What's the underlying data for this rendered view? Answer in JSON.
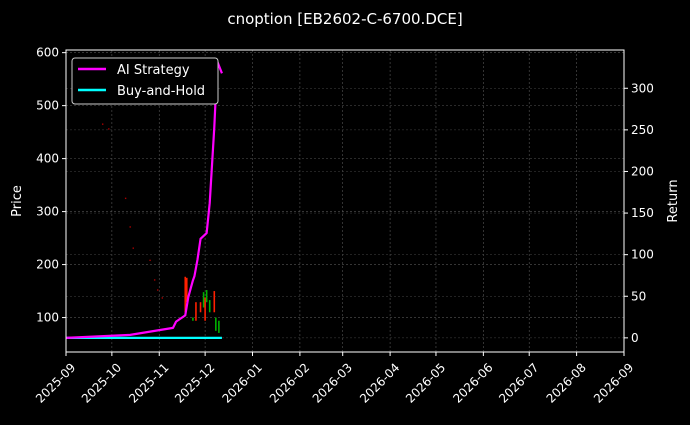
{
  "chart_data": {
    "type": "line",
    "title": "cnoption [EB2602-C-6700.DCE]",
    "ylabel": "Price",
    "y2label": "Return",
    "xlim": [
      "2025-09-01",
      "2026-09-01"
    ],
    "ylim": [
      35,
      605
    ],
    "y2lim": [
      -17,
      346
    ],
    "grid": true,
    "legend_placement": "top-left",
    "x_ticks": [
      "2025-09",
      "2025-10",
      "2025-11",
      "2025-12",
      "2026-01",
      "2026-02",
      "2026-03",
      "2026-04",
      "2026-05",
      "2026-06",
      "2026-07",
      "2026-08",
      "2026-09"
    ],
    "y_ticks": [
      100,
      200,
      300,
      400,
      500,
      600
    ],
    "y2_ticks": [
      0,
      50,
      100,
      150,
      200,
      250,
      300
    ],
    "series": [
      {
        "name": "AI Strategy",
        "color": "#ff00ff",
        "axis": "right",
        "x": [
          "2025-09-01",
          "2025-10-13",
          "2025-11-10",
          "2025-11-12",
          "2025-11-18",
          "2025-11-20",
          "2025-11-23",
          "2025-11-24",
          "2025-11-26",
          "2025-11-28",
          "2025-12-02",
          "2025-12-04",
          "2025-12-07",
          "2025-12-09",
          "2025-12-12"
        ],
        "y": [
          0,
          3.6,
          12,
          19.5,
          27,
          49,
          69,
          74,
          94,
          119,
          126,
          162,
          253,
          332,
          318
        ]
      },
      {
        "name": "Buy-and-Hold",
        "color": "#00ffff",
        "axis": "right",
        "x": [
          "2025-09-01",
          "2025-12-12"
        ],
        "y": [
          0,
          0
        ]
      }
    ],
    "price_marks": [
      {
        "x": "2025-09-25",
        "y": 465
      },
      {
        "x": "2025-09-29",
        "y": 456
      },
      {
        "x": "2025-10-10",
        "y": 325
      },
      {
        "x": "2025-10-13",
        "y": 271
      },
      {
        "x": "2025-10-15",
        "y": 231
      },
      {
        "x": "2025-10-26",
        "y": 208
      },
      {
        "x": "2025-10-29",
        "y": 171
      },
      {
        "x": "2025-10-31",
        "y": 152
      },
      {
        "x": "2025-11-03",
        "y": 137
      }
    ],
    "candles": [
      {
        "x": "2025-11-18",
        "open": 177,
        "close": 110,
        "color": "#ff2000"
      },
      {
        "x": "2025-11-19",
        "open": 175,
        "close": 129,
        "color": "#ff2000"
      },
      {
        "x": "2025-11-23",
        "open": 100,
        "close": 94,
        "color": "#00b000"
      },
      {
        "x": "2025-11-25",
        "open": 129,
        "close": 94,
        "color": "#ff2000"
      },
      {
        "x": "2025-11-28",
        "open": 129,
        "close": 110,
        "color": "#ff2000"
      },
      {
        "x": "2025-11-30",
        "open": 119,
        "close": 148,
        "color": "#00b000"
      },
      {
        "x": "2025-12-01",
        "open": 138,
        "close": 94,
        "color": "#ff2000"
      },
      {
        "x": "2025-12-02",
        "open": 129,
        "close": 152,
        "color": "#00b000"
      },
      {
        "x": "2025-12-04",
        "open": 110,
        "close": 133,
        "color": "#00b000"
      },
      {
        "x": "2025-12-07",
        "open": 150,
        "close": 110,
        "color": "#ff2000"
      },
      {
        "x": "2025-12-08",
        "open": 75,
        "close": 100,
        "color": "#00b000"
      },
      {
        "x": "2025-12-10",
        "open": 71,
        "close": 94,
        "color": "#00b000"
      }
    ]
  }
}
